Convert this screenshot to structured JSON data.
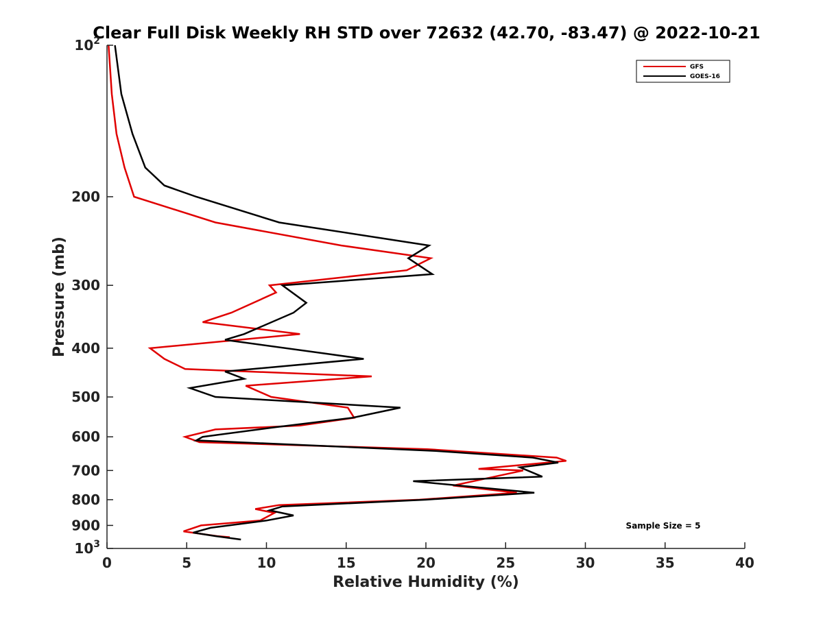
{
  "chart_data": {
    "type": "line",
    "title": "Clear Full Disk Weekly RH STD over 72632 (42.70, -83.47) @ 2022-10-21",
    "xlabel": "Relative Humidity (%)",
    "ylabel": "Pressure (mb)",
    "xlim": [
      0,
      40
    ],
    "ylim": [
      100,
      1000
    ],
    "y_scale": "log",
    "y_reversed": true,
    "grid": false,
    "legend_position": "top-right",
    "x_ticks": [
      0,
      5,
      10,
      15,
      20,
      25,
      30,
      35,
      40
    ],
    "x_tick_labels": [
      "0",
      "5",
      "10",
      "15",
      "20",
      "25",
      "30",
      "35",
      "40"
    ],
    "y_ticks": [
      100,
      200,
      300,
      400,
      500,
      600,
      700,
      800,
      900,
      1000
    ],
    "y_tick_labels": [
      {
        "base": "10",
        "sup": "2"
      },
      {
        "base": "200",
        "sup": ""
      },
      {
        "base": "300",
        "sup": ""
      },
      {
        "base": "400",
        "sup": ""
      },
      {
        "base": "500",
        "sup": ""
      },
      {
        "base": "600",
        "sup": ""
      },
      {
        "base": "700",
        "sup": ""
      },
      {
        "base": "800",
        "sup": ""
      },
      {
        "base": "900",
        "sup": ""
      },
      {
        "base": "10",
        "sup": "3"
      }
    ],
    "annotation": "Sample Size = 5",
    "series": [
      {
        "name": "GFS",
        "color": "#e00000",
        "points": [
          [
            0.1,
            100
          ],
          [
            0.3,
            125
          ],
          [
            0.6,
            150
          ],
          [
            1.1,
            175
          ],
          [
            1.7,
            200
          ],
          [
            6.8,
            225
          ],
          [
            14.7,
            250
          ],
          [
            20.3,
            265
          ],
          [
            18.8,
            280
          ],
          [
            10.2,
            300
          ],
          [
            10.6,
            310
          ],
          [
            7.8,
            340
          ],
          [
            6.0,
            355
          ],
          [
            12.1,
            375
          ],
          [
            2.7,
            400
          ],
          [
            3.6,
            420
          ],
          [
            4.9,
            440
          ],
          [
            16.6,
            455
          ],
          [
            8.7,
            475
          ],
          [
            10.3,
            500
          ],
          [
            15.1,
            525
          ],
          [
            15.5,
            550
          ],
          [
            12.1,
            570
          ],
          [
            6.8,
            580
          ],
          [
            4.9,
            600
          ],
          [
            5.8,
            615
          ],
          [
            20.1,
            635
          ],
          [
            28.2,
            660
          ],
          [
            28.8,
            670
          ],
          [
            23.3,
            695
          ],
          [
            26.1,
            700
          ],
          [
            21.7,
            750
          ],
          [
            25.7,
            775
          ],
          [
            19.6,
            800
          ],
          [
            10.8,
            820
          ],
          [
            9.3,
            835
          ],
          [
            10.5,
            850
          ],
          [
            9.6,
            880
          ],
          [
            5.9,
            900
          ],
          [
            4.8,
            925
          ],
          [
            6.9,
            945
          ],
          [
            7.7,
            950
          ]
        ]
      },
      {
        "name": "GOES-16",
        "color": "#000000",
        "points": [
          [
            0.5,
            100
          ],
          [
            0.9,
            125
          ],
          [
            1.6,
            150
          ],
          [
            2.4,
            175
          ],
          [
            3.6,
            190
          ],
          [
            5.6,
            200
          ],
          [
            10.8,
            225
          ],
          [
            20.2,
            250
          ],
          [
            18.9,
            265
          ],
          [
            20.4,
            285
          ],
          [
            11.0,
            300
          ],
          [
            12.5,
            325
          ],
          [
            11.7,
            340
          ],
          [
            8.6,
            375
          ],
          [
            7.4,
            385
          ],
          [
            13.7,
            410
          ],
          [
            16.1,
            420
          ],
          [
            7.4,
            445
          ],
          [
            8.6,
            460
          ],
          [
            5.2,
            480
          ],
          [
            6.8,
            500
          ],
          [
            18.4,
            525
          ],
          [
            15.4,
            550
          ],
          [
            10.4,
            575
          ],
          [
            6.0,
            600
          ],
          [
            5.6,
            610
          ],
          [
            20.6,
            640
          ],
          [
            26.7,
            660
          ],
          [
            28.3,
            675
          ],
          [
            25.9,
            690
          ],
          [
            27.3,
            720
          ],
          [
            19.2,
            735
          ],
          [
            26.8,
            775
          ],
          [
            20.0,
            800
          ],
          [
            11.0,
            825
          ],
          [
            10.2,
            840
          ],
          [
            11.7,
            860
          ],
          [
            10.0,
            880
          ],
          [
            6.5,
            910
          ],
          [
            5.4,
            930
          ],
          [
            6.8,
            945
          ],
          [
            8.4,
            960
          ]
        ]
      }
    ]
  }
}
